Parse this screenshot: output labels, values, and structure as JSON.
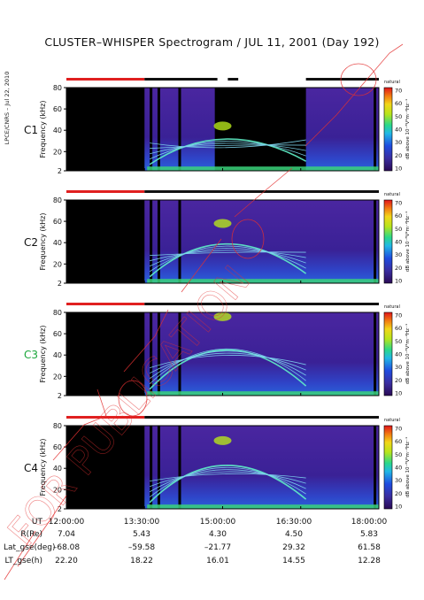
{
  "title": "CLUSTER–WHISPER Spectrogram / JUL 11, 2001 (Day 192)",
  "side_note": "LPCE/CNRS – Jul 22, 2010",
  "colors": {
    "spacecraft_label": "#111111",
    "c3_label": "#1aa63a",
    "bar_red": "#e02020",
    "bar_black": "#111111",
    "watermark": "#e33030"
  },
  "watermark_text": "FOR PUBLICATION",
  "chart_data": {
    "type": "heatmap",
    "ylabel": "Frequency (kHz)",
    "colorbar_label": "dB above 10⁻⁸V²m⁻²Hz⁻¹",
    "colorbar_tag": "natural",
    "colorbar_ticks": [
      "70",
      "60",
      "50",
      "40",
      "30",
      "20",
      "10"
    ],
    "yticks": [
      "80",
      "60",
      "40",
      "20",
      "2"
    ],
    "ylim": [
      2,
      80
    ],
    "x_time_range": [
      "12:00:00",
      "18:00:00"
    ],
    "panels": [
      {
        "name": "C1",
        "label_color": "#111111"
      },
      {
        "name": "C2",
        "label_color": "#111111"
      },
      {
        "name": "C3",
        "label_color": "#1aa63a"
      },
      {
        "name": "C4",
        "label_color": "#111111"
      }
    ]
  },
  "ephemeris": {
    "labels": [
      "UT",
      "R(Re)",
      "Lat_gse(deg)",
      "LT_gse(h)"
    ],
    "columns": [
      {
        "ut": "12:00:00",
        "r": "7.04",
        "lat": "–68.08",
        "lt": "22.20"
      },
      {
        "ut": "13:30:00",
        "r": "5.43",
        "lat": "–59.58",
        "lt": "18.22"
      },
      {
        "ut": "15:00:00",
        "r": "4.30",
        "lat": "–21.77",
        "lt": "16.01"
      },
      {
        "ut": "16:30:00",
        "r": "4.50",
        "lat": "29.32",
        "lt": "14.55"
      },
      {
        "ut": "18:00:00",
        "r": "5.83",
        "lat": "61.58",
        "lt": "12.28"
      }
    ]
  }
}
